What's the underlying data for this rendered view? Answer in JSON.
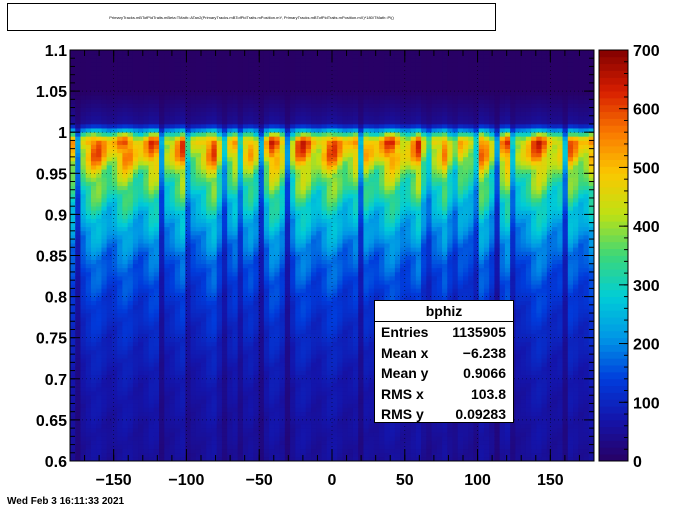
{
  "title": "PrimaryTracks.mBTofPidTraits.mBeta:TMath::ATan2(PrimaryTracks.mBTofPidTraits.mPosition.mY, PrimaryTracks.mBTofPidTraits.mPosition.mX)*180/TMath::Pi()",
  "timestamp": "Wed Feb  3 16:11:33 2021",
  "stats": {
    "name": "bphiz",
    "rows": [
      {
        "label": "Entries",
        "value": "1135905"
      },
      {
        "label": "Mean x",
        "value": "−6.238"
      },
      {
        "label": "Mean y",
        "value": "0.9066"
      },
      {
        "label": "RMS x",
        "value": "103.8"
      },
      {
        "label": "RMS y",
        "value": "0.09283"
      }
    ]
  },
  "chart_data": {
    "type": "heatmap",
    "title": "",
    "xlabel": "",
    "ylabel": "",
    "xlim": [
      -180,
      180
    ],
    "ylim": [
      0.6,
      1.1
    ],
    "zlim": [
      0,
      700
    ],
    "x_ticks": [
      -150,
      -100,
      -50,
      0,
      50,
      100,
      150
    ],
    "x_tick_labels": [
      "−150",
      "−100",
      "−50",
      "0",
      "50",
      "100",
      "150"
    ],
    "y_ticks": [
      0.6,
      0.65,
      0.7,
      0.75,
      0.8,
      0.85,
      0.9,
      0.95,
      1,
      1.05,
      1.1
    ],
    "y_tick_labels": [
      "0.6",
      "0.65",
      "0.7",
      "0.75",
      "0.8",
      "0.85",
      "0.9",
      "0.95",
      "1",
      "1.05",
      "1.1"
    ],
    "z_ticks": [
      0,
      100,
      200,
      300,
      400,
      500,
      600,
      700
    ],
    "z_tick_labels": [
      "0",
      "100",
      "200",
      "300",
      "400",
      "500",
      "600",
      "700"
    ],
    "colormap": "rainbow (dark blue → cyan → green → yellow → red → dark red)",
    "grid": true,
    "band_peak_y": 0.98,
    "gaps_x": [
      -175,
      -117,
      -98,
      -75,
      -62,
      -48,
      -30,
      20,
      65,
      83,
      98,
      113,
      125,
      160
    ],
    "band_profile": [
      {
        "y": 1.1,
        "z": 2
      },
      {
        "y": 1.05,
        "z": 2
      },
      {
        "y": 1.01,
        "z": 60
      },
      {
        "y": 0.99,
        "z": 600
      },
      {
        "y": 0.97,
        "z": 560
      },
      {
        "y": 0.95,
        "z": 440
      },
      {
        "y": 0.9,
        "z": 300
      },
      {
        "y": 0.85,
        "z": 200
      },
      {
        "y": 0.8,
        "z": 150
      },
      {
        "y": 0.75,
        "z": 115
      },
      {
        "y": 0.7,
        "z": 85
      },
      {
        "y": 0.65,
        "z": 70
      },
      {
        "y": 0.6,
        "z": 60
      }
    ]
  }
}
